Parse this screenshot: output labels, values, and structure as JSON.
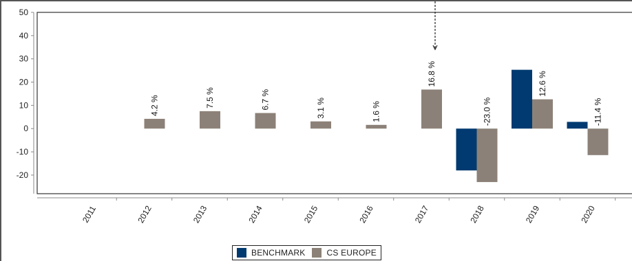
{
  "chart_data": {
    "type": "bar",
    "categories": [
      "2011",
      "2012",
      "2013",
      "2014",
      "2015",
      "2016",
      "2017",
      "2018",
      "2019",
      "2020"
    ],
    "series": [
      {
        "name": "BENCHMARK",
        "color": "#003a70",
        "values": [
          null,
          null,
          null,
          null,
          null,
          null,
          null,
          -18.0,
          25.3,
          2.9
        ],
        "labels": [
          null,
          null,
          null,
          null,
          null,
          null,
          null,
          null,
          null,
          null
        ]
      },
      {
        "name": "CS EUROPE",
        "color": "#8c8178",
        "values": [
          null,
          4.2,
          7.5,
          6.7,
          3.1,
          1.6,
          16.8,
          -23.0,
          12.6,
          -11.4
        ],
        "labels": [
          null,
          "4.2 %",
          "7.5 %",
          "6.7 %",
          "3.1 %",
          "1.6 %",
          "16.8 %",
          "-23.0 %",
          "12.6 %",
          "-11.4 %"
        ]
      }
    ],
    "yticks": [
      "50",
      "40",
      "30",
      "20",
      "10",
      "0",
      "-10",
      "-20"
    ],
    "ylim": [
      -28,
      50
    ],
    "title": "",
    "xlabel": "",
    "ylabel": "",
    "grid": false,
    "legend_position": "bottom-center",
    "annotation": {
      "category": "2017",
      "arrow": "dashed-arrow"
    }
  }
}
